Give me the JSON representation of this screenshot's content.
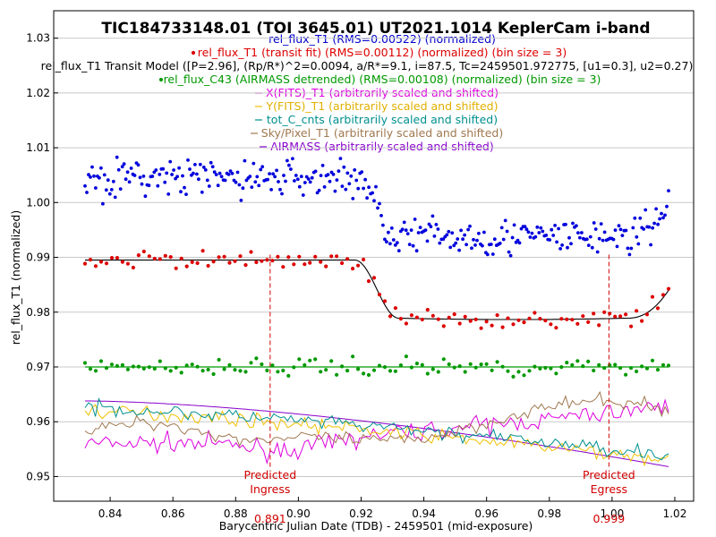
{
  "chart_data": {
    "type": "scatter",
    "title": "TIC184733148.01 (TOI 3645.01) UT2021.1014 KeplerCam i-band",
    "xlabel": "Barycentric Julian Date (TDB) - 2459501 (mid-exposure)",
    "ylabel": "rel_flux_T1 (normalized)",
    "xlim": [
      0.822,
      1.026
    ],
    "ylim": [
      0.9455,
      1.035
    ],
    "grid": "horizontal",
    "x_ticks": [
      "0.84",
      "0.86",
      "0.88",
      "0.90",
      "0.92",
      "0.94",
      "0.96",
      "0.98",
      "1.00",
      "1.02"
    ],
    "y_ticks": [
      "0.95",
      "0.96",
      "0.97",
      "0.98",
      "0.99",
      "1.00",
      "1.01",
      "1.02",
      "1.03"
    ],
    "legend": [
      {
        "label": "rel_flux_T1 (RMS=0.00522) (normalized)",
        "color": "#0000cc",
        "marker": "none"
      },
      {
        "label": "rel_flux_T1 (transit fit) (RMS=0.00112) (normalized) (bin size = 3)",
        "color": "#dd0000",
        "marker": "dot"
      },
      {
        "label": "rel_flux_T1 Transit Model ([P=2.96], (Rp/R*)^2=0.0094, a/R*=9.1, i=87.5, Tc=2459501.972775, [u1=0.3], u2=0.27)",
        "color": "#000000",
        "marker": "none"
      },
      {
        "label": "rel_flux_C43 (AIRMASS detrended) (RMS=0.00108) (normalized) (bin size = 3)",
        "color": "#009900",
        "marker": "dot"
      },
      {
        "label": "X(FITS)_T1 (arbitrarily scaled and shifted)",
        "color": "#dd00dd",
        "marker": "dash"
      },
      {
        "label": "Y(FITS)_T1 (arbitrarily scaled and shifted)",
        "color": "#f0c000",
        "marker": "dash"
      },
      {
        "label": "tot_C_cnts (arbitrarily scaled and shifted)",
        "color": "#008f8f",
        "marker": "dash"
      },
      {
        "label": "Sky/Pixel_T1 (arbitrarily scaled and shifted)",
        "color": "#a07850",
        "marker": "dash"
      },
      {
        "label": "AIRMASS (arbitrarily scaled and shifted)",
        "color": "#8800cc",
        "marker": "dash"
      }
    ],
    "x_range_data": [
      0.832,
      1.018
    ],
    "predicted": [
      {
        "label_top": "Predicted",
        "label_bottom": "Ingress",
        "x": 0.891,
        "x_label": "0.891"
      },
      {
        "label_top": "Predicted",
        "label_bottom": "Egress",
        "x": 0.999,
        "x_label": "0.999"
      }
    ],
    "model": {
      "baseline": 0.9895,
      "depth": 0.0106,
      "ingress": [
        0.918,
        0.932
      ],
      "egress": [
        1.005,
        1.018
      ],
      "egress_end": 0.984
    },
    "series": [
      {
        "key": "raw",
        "level_out": 1.0045,
        "level_in": 0.9945,
        "scatter": 0.0045
      },
      {
        "key": "binned",
        "level_out": 0.9895,
        "level_in": 0.979,
        "scatter": 0.0012
      },
      {
        "key": "comparison",
        "level": 0.97,
        "scatter": 0.0012
      },
      {
        "key": "airmass",
        "from": 0.9638,
        "to": 0.9518
      },
      {
        "key": "x_fits",
        "from": 0.956,
        "to": 0.963
      },
      {
        "key": "y_fits",
        "from": 0.962,
        "to": 0.953
      },
      {
        "key": "tot_cnts",
        "from": 0.9625,
        "to": 0.954
      },
      {
        "key": "sky",
        "from": 0.958,
        "to": 0.961
      }
    ]
  }
}
